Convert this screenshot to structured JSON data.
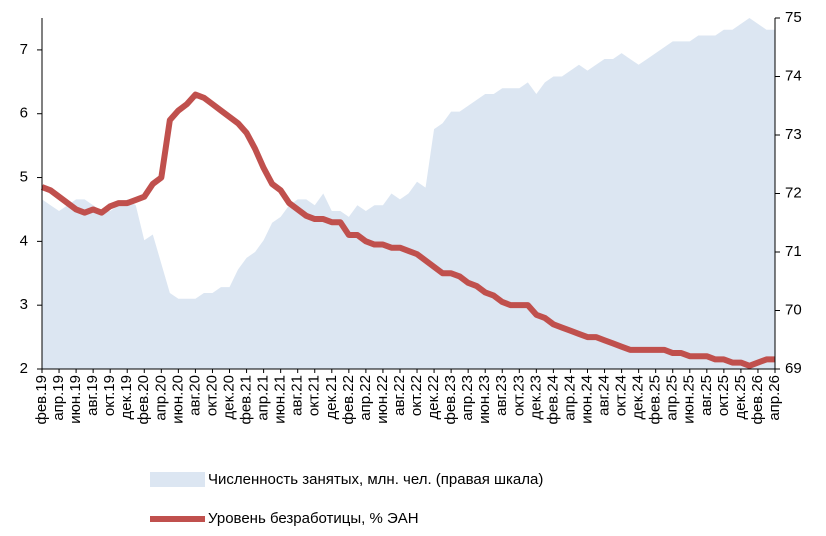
{
  "chart_data": {
    "type": "line",
    "categories": [
      "фев.19",
      null,
      "апр.19",
      null,
      "июн.19",
      null,
      "авг.19",
      null,
      "окт.19",
      null,
      "дек.19",
      null,
      "фев.20",
      null,
      "апр.20",
      null,
      "июн.20",
      null,
      "авг.20",
      null,
      "окт.20",
      null,
      "дек.20",
      null,
      "фев.21",
      null,
      "апр.21",
      null,
      "июн.21",
      null,
      "авг.21",
      null,
      "окт.21",
      null,
      "дек.21",
      null,
      "фев.22",
      null,
      "апр.22",
      null,
      "июн.22",
      null,
      "авг.22",
      null,
      "окт.22",
      null,
      "дек.22",
      null,
      "фев.23",
      null,
      "апр.23",
      null,
      "июн.23",
      null,
      "авг.23",
      null,
      "окт.23",
      null,
      "дек.23",
      null,
      "фев.24",
      null,
      "апр.24",
      null,
      "июн.24",
      null,
      "авг.24",
      null,
      "окт.24",
      null,
      "дек.24",
      null,
      "фев.25",
      null,
      "апр.25",
      null,
      "июн.25",
      null,
      "авг.25",
      null,
      "окт.25",
      null,
      "дек.25",
      null,
      "фев.26",
      null,
      "апр.26"
    ],
    "series": [
      {
        "name": "Численность занятых, млн. чел. (правая шкала)",
        "color": "#dce6f2",
        "axis": "y2",
        "style": "area",
        "values": [
          71.9,
          71.8,
          71.7,
          71.8,
          71.9,
          71.9,
          71.8,
          71.7,
          71.7,
          71.8,
          71.9,
          71.8,
          71.2,
          71.3,
          70.8,
          70.3,
          70.2,
          70.2,
          70.2,
          70.3,
          70.3,
          70.4,
          70.4,
          70.7,
          70.9,
          71.0,
          71.2,
          71.5,
          71.6,
          71.8,
          71.9,
          71.9,
          71.8,
          72.0,
          71.7,
          71.7,
          71.6,
          71.8,
          71.7,
          71.8,
          71.8,
          72.0,
          71.9,
          72.0,
          72.2,
          72.1,
          73.1,
          73.2,
          73.4,
          73.4,
          73.5,
          73.6,
          73.7,
          73.7,
          73.8,
          73.8,
          73.8,
          73.9,
          73.7,
          73.9,
          74.0,
          74.0,
          74.1,
          74.2,
          74.1,
          74.2,
          74.3,
          74.3,
          74.4,
          74.3,
          74.2,
          74.3,
          74.4,
          74.5,
          74.6,
          74.6,
          74.6,
          74.7,
          74.7,
          74.7,
          74.8,
          74.8,
          74.9,
          75.0,
          74.9,
          74.8,
          74.8
        ]
      },
      {
        "name": "Уровень безработицы, % ЭАН",
        "color": "#c0504d",
        "style": "line",
        "values": [
          4.85,
          4.8,
          4.7,
          4.6,
          4.5,
          4.45,
          4.5,
          4.45,
          4.55,
          4.6,
          4.6,
          4.65,
          4.7,
          4.9,
          5.0,
          5.9,
          6.05,
          6.15,
          6.3,
          6.25,
          6.15,
          6.05,
          5.95,
          5.85,
          5.7,
          5.45,
          5.15,
          4.9,
          4.8,
          4.6,
          4.5,
          4.4,
          4.35,
          4.35,
          4.3,
          4.3,
          4.1,
          4.1,
          4.0,
          3.95,
          3.95,
          3.9,
          3.9,
          3.85,
          3.8,
          3.7,
          3.6,
          3.5,
          3.5,
          3.45,
          3.35,
          3.3,
          3.2,
          3.15,
          3.05,
          3.0,
          3.0,
          3.0,
          2.85,
          2.8,
          2.7,
          2.65,
          2.6,
          2.55,
          2.5,
          2.5,
          2.45,
          2.4,
          2.35,
          2.3,
          2.3,
          2.3,
          2.3,
          2.3,
          2.25,
          2.25,
          2.2,
          2.2,
          2.2,
          2.15,
          2.15,
          2.1,
          2.1,
          2.05,
          2.1,
          2.15,
          2.15
        ]
      }
    ],
    "ylim": [
      2,
      7.5
    ],
    "yticks": [
      2,
      3,
      4,
      5,
      6,
      7
    ],
    "y2lim": [
      69,
      75
    ],
    "y2ticks": [
      69,
      70,
      71,
      72,
      73,
      74,
      75
    ]
  }
}
